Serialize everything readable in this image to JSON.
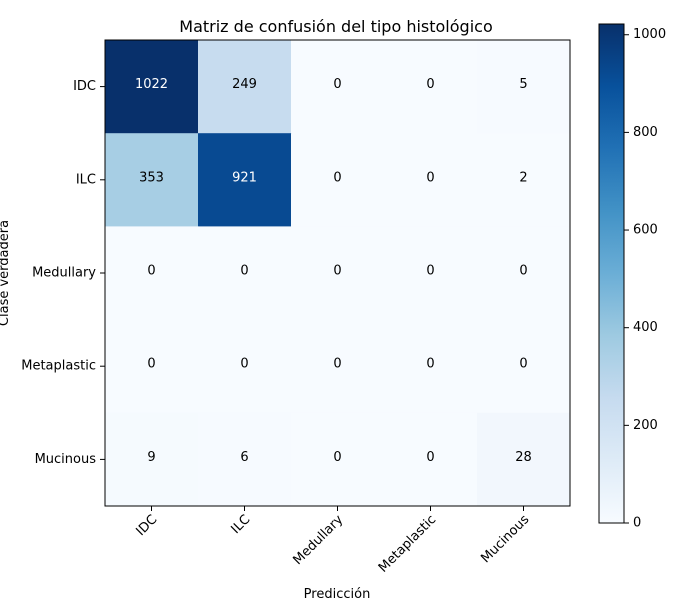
{
  "chart_data": {
    "type": "heatmap",
    "title": "Matriz de confusión del tipo histológico",
    "xlabel": "Predicción",
    "ylabel": "Clase verdadera",
    "x_categories": [
      "IDC",
      "ILC",
      "Medullary",
      "Metaplastic",
      "Mucinous"
    ],
    "y_categories": [
      "IDC",
      "ILC",
      "Medullary",
      "Metaplastic",
      "Mucinous"
    ],
    "values": [
      [
        1022,
        249,
        0,
        0,
        5
      ],
      [
        353,
        921,
        0,
        0,
        2
      ],
      [
        0,
        0,
        0,
        0,
        0
      ],
      [
        0,
        0,
        0,
        0,
        0
      ],
      [
        9,
        6,
        0,
        0,
        28
      ]
    ],
    "colormap": "Blues",
    "vmin": 0,
    "vmax": 1022,
    "colorbar_ticks": [
      0,
      200,
      400,
      600,
      800,
      1000
    ],
    "grid": false,
    "colors": {
      "low": "#f7fbff",
      "high": "#08306b"
    }
  }
}
